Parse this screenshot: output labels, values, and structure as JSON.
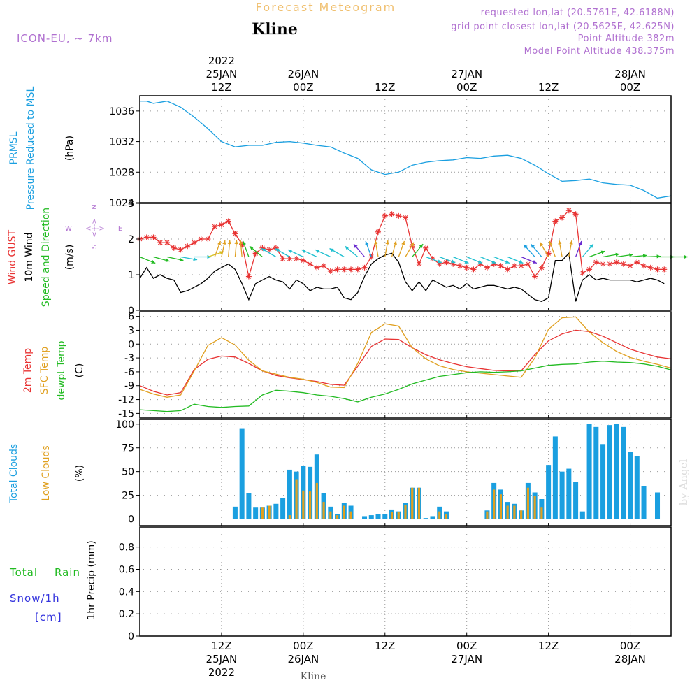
{
  "header": {
    "forecast_label": "Forecast Meteogram",
    "station": "Kline",
    "model": "ICON-EU, ~ 7km",
    "requested": "requested lon,lat (20.5761E, 42.6188N)",
    "gridpoint": "grid point closest lon,lat (20.5625E, 42.625N)",
    "point_alt": "Point Altitude 382m",
    "model_alt": "Model Point Altitude 438.375m"
  },
  "footer": {
    "station": "Kline",
    "watermark": "by Angel"
  },
  "time_axis": {
    "top": [
      {
        "h": 12,
        "lines": [
          "2022",
          "25JAN",
          "12Z"
        ]
      },
      {
        "h": 24,
        "lines": [
          "26JAN",
          "00Z"
        ]
      },
      {
        "h": 36,
        "lines": [
          "12Z"
        ]
      },
      {
        "h": 48,
        "lines": [
          "27JAN",
          "00Z"
        ]
      },
      {
        "h": 60,
        "lines": [
          "12Z"
        ]
      },
      {
        "h": 72,
        "lines": [
          "28JAN",
          "00Z"
        ]
      }
    ],
    "bottom": [
      {
        "h": 12,
        "lines": [
          "12Z",
          "25JAN",
          "2022"
        ]
      },
      {
        "h": 24,
        "lines": [
          "00Z",
          "26JAN"
        ]
      },
      {
        "h": 36,
        "lines": [
          "12Z"
        ]
      },
      {
        "h": 48,
        "lines": [
          "00Z",
          "27JAN"
        ]
      },
      {
        "h": 60,
        "lines": [
          "12Z"
        ]
      },
      {
        "h": 72,
        "lines": [
          "00Z",
          "28JAN"
        ]
      }
    ]
  },
  "legend": {
    "p1": [
      {
        "t": "PRMSL",
        "c": "#1a9fe0"
      },
      {
        "t": "Pressure Reduced to MSL",
        "c": "#1a9fe0"
      },
      {
        "t": "(hPa)",
        "c": "#000000"
      }
    ],
    "p2": [
      {
        "t": "Wind GUST",
        "c": "#e83333"
      },
      {
        "t": "10m Wind",
        "c": "#000000"
      },
      {
        "t": "Speed and Direction",
        "c": "#22bb22"
      },
      {
        "t": "(m/s)",
        "c": "#000000"
      }
    ],
    "compass": {
      "n": "N",
      "s": "S",
      "w": "W",
      "e": "E",
      "ns": "<--->",
      "we": "<--->"
    },
    "p3": [
      {
        "t": "2m Temp",
        "c": "#e83333"
      },
      {
        "t": "SFC Temp",
        "c": "#e0a020"
      },
      {
        "t": "dewpt Temp",
        "c": "#22bb22"
      },
      {
        "t": "(C)",
        "c": "#000000"
      }
    ],
    "p4": [
      {
        "t": "Total Clouds",
        "c": "#1a9fe0"
      },
      {
        "t": "Low Clouds",
        "c": "#e0a020"
      },
      {
        "t": "(%)",
        "c": "#000000"
      }
    ],
    "p5": [
      {
        "t": "Total",
        "c": "#22bb22"
      },
      {
        "t": "Rain",
        "c": "#22bb22"
      },
      {
        "t": "Snow/1h",
        "c": "#3333dd"
      },
      {
        "t": "[cm]",
        "c": "#3333dd"
      },
      {
        "t": "1hr Precip (mm)",
        "c": "#000000"
      }
    ]
  },
  "colors": {
    "pressure": "#1a9fe0",
    "gust": "#e83333",
    "wind": "#000000",
    "t2m": "#e83333",
    "tsfc": "#e0a020",
    "dewpt": "#22bb22",
    "cloud_total": "#1a9fe0",
    "cloud_low": "#e0a020",
    "grid": "#999999"
  },
  "chart_data": [
    {
      "type": "line",
      "id": "pressure",
      "title": "PRMSL Pressure Reduced to MSL",
      "ylabel": "(hPa)",
      "ylim": [
        1024,
        1038
      ],
      "yticks": [
        1024,
        1028,
        1032,
        1036
      ],
      "xlim": [
        0,
        78
      ],
      "grid": true,
      "x": [
        0,
        1,
        2,
        4,
        6,
        8,
        10,
        12,
        14,
        16,
        18,
        20,
        22,
        24,
        26,
        28,
        30,
        32,
        34,
        36,
        38,
        40,
        42,
        44,
        46,
        48,
        50,
        52,
        54,
        56,
        58,
        60,
        62,
        64,
        66,
        68,
        70,
        72,
        74,
        76,
        78
      ],
      "series": [
        {
          "name": "PRMSL",
          "values": [
            1037.3,
            1037.3,
            1037.0,
            1037.3,
            1036.5,
            1035.2,
            1033.7,
            1032.0,
            1031.3,
            1031.5,
            1031.5,
            1031.9,
            1032.0,
            1031.8,
            1031.5,
            1031.3,
            1030.5,
            1029.8,
            1028.3,
            1027.7,
            1028.0,
            1028.9,
            1029.3,
            1029.5,
            1029.6,
            1029.9,
            1029.8,
            1030.1,
            1030.2,
            1029.8,
            1028.9,
            1027.8,
            1026.8,
            1026.9,
            1027.1,
            1026.6,
            1026.4,
            1026.3,
            1025.6,
            1024.6,
            1024.9
          ]
        }
      ]
    },
    {
      "type": "line",
      "id": "wind",
      "title": "Wind GUST / 10m Wind Speed and Direction",
      "ylabel": "(m/s)",
      "ylim": [
        0,
        3
      ],
      "yticks": [
        0,
        1,
        2,
        3
      ],
      "xlim": [
        0,
        78
      ],
      "grid": true,
      "x": [
        0,
        1,
        2,
        3,
        4,
        5,
        6,
        7,
        8,
        9,
        10,
        11,
        12,
        13,
        14,
        15,
        16,
        17,
        18,
        19,
        20,
        21,
        22,
        23,
        24,
        25,
        26,
        27,
        28,
        29,
        30,
        31,
        32,
        33,
        34,
        35,
        36,
        37,
        38,
        39,
        40,
        41,
        42,
        43,
        44,
        45,
        46,
        47,
        48,
        49,
        50,
        51,
        52,
        53,
        54,
        55,
        56,
        57,
        58,
        59,
        60,
        61,
        62,
        63,
        64,
        65,
        66,
        67,
        68,
        69,
        70,
        71,
        72,
        73,
        74,
        75,
        76,
        77
      ],
      "series": [
        {
          "name": "Wind GUST",
          "values": [
            2.0,
            2.05,
            2.05,
            1.9,
            1.9,
            1.75,
            1.7,
            1.8,
            1.9,
            2.0,
            2.0,
            2.35,
            2.4,
            2.5,
            2.15,
            1.85,
            0.95,
            1.6,
            1.75,
            1.7,
            1.75,
            1.45,
            1.45,
            1.45,
            1.4,
            1.3,
            1.2,
            1.25,
            1.1,
            1.15,
            1.15,
            1.15,
            1.15,
            1.2,
            1.5,
            2.2,
            2.65,
            2.7,
            2.65,
            2.6,
            1.8,
            1.3,
            1.75,
            1.45,
            1.3,
            1.35,
            1.3,
            1.25,
            1.2,
            1.15,
            1.3,
            1.2,
            1.3,
            1.25,
            1.15,
            1.25,
            1.25,
            1.3,
            0.95,
            1.2,
            1.6,
            2.5,
            2.6,
            2.8,
            2.7,
            1.05,
            1.15,
            1.35,
            1.3,
            1.3,
            1.35,
            1.3,
            1.25,
            1.35,
            1.25,
            1.2,
            1.15,
            1.15
          ]
        },
        {
          "name": "10m Wind",
          "values": [
            0.9,
            1.2,
            0.9,
            1.0,
            0.9,
            0.85,
            0.5,
            0.55,
            0.65,
            0.75,
            0.9,
            1.1,
            1.2,
            1.3,
            1.15,
            0.75,
            0.3,
            0.75,
            0.85,
            0.95,
            0.85,
            0.8,
            0.6,
            0.85,
            0.75,
            0.55,
            0.65,
            0.6,
            0.6,
            0.65,
            0.35,
            0.3,
            0.5,
            0.95,
            1.3,
            1.45,
            1.55,
            1.6,
            1.35,
            0.8,
            0.55,
            0.8,
            0.55,
            0.85,
            0.75,
            0.65,
            0.7,
            0.6,
            0.75,
            0.6,
            0.65,
            0.7,
            0.7,
            0.65,
            0.6,
            0.65,
            0.6,
            0.45,
            0.3,
            0.25,
            0.35,
            1.4,
            1.4,
            1.6,
            0.25,
            0.85,
            1.0,
            0.85,
            0.9,
            0.85,
            0.85,
            0.85,
            0.85,
            0.8,
            0.85,
            0.9,
            0.85,
            0.75
          ]
        }
      ],
      "direction_arrows": {
        "x": [
          0,
          2,
          4,
          6,
          8,
          10,
          11,
          12,
          13,
          14,
          15,
          16,
          18,
          20,
          22,
          24,
          26,
          28,
          30,
          32,
          33,
          34,
          35,
          36,
          37,
          38,
          39,
          40,
          42,
          44,
          46,
          48,
          50,
          52,
          54,
          56,
          58,
          59,
          60,
          61,
          62,
          63,
          64,
          65,
          66,
          68,
          70,
          72,
          74,
          76,
          78
        ],
        "dir_deg": [
          112,
          105,
          102,
          100,
          90,
          72,
          20,
          12,
          5,
          5,
          355,
          340,
          310,
          300,
          300,
          295,
          295,
          295,
          300,
          310,
          320,
          340,
          350,
          10,
          15,
          20,
          30,
          40,
          110,
          110,
          112,
          112,
          112,
          112,
          112,
          112,
          318,
          320,
          330,
          340,
          350,
          10,
          20,
          40,
          70,
          80,
          82,
          85,
          88,
          90,
          90
        ],
        "color": [
          "#22bb22",
          "#22bb22",
          "#22bb22",
          "#20c0d0",
          "#20c0d0",
          "#d4c020",
          "#e0a020",
          "#e0a020",
          "#e0a020",
          "#e0a020",
          "#e0a020",
          "#22bb22",
          "#22bb22",
          "#20c0d0",
          "#20c0d0",
          "#20c0d0",
          "#20c0d0",
          "#20c0d0",
          "#20c0d0",
          "#20c0d0",
          "#6a2bd0",
          "#1a9fe0",
          "#e0a020",
          "#e0a020",
          "#e0a020",
          "#e0a020",
          "#e0a020",
          "#22bb22",
          "#20c0d0",
          "#20c0d0",
          "#20c0d0",
          "#20c0d0",
          "#20c0d0",
          "#20c0d0",
          "#20c0d0",
          "#6a2bd0",
          "#1a9fe0",
          "#1a9fe0",
          "#e0a020",
          "#e0a020",
          "#e0a020",
          "#e0a020",
          "#6a2bd0",
          "#20c0d0",
          "#22bb22",
          "#22bb22",
          "#22bb22",
          "#22bb22",
          "#22bb22",
          "#22bb22",
          "#22bb22"
        ]
      }
    },
    {
      "type": "line",
      "id": "temperature",
      "title": "2m Temp / SFC Temp / dewpt Temp",
      "ylabel": "(C)",
      "ylim": [
        -16,
        7
      ],
      "yticks": [
        -15,
        -12,
        -9,
        -6,
        -3,
        0,
        3,
        6
      ],
      "xlim": [
        0,
        78
      ],
      "grid": true,
      "x": [
        0,
        2,
        4,
        6,
        8,
        10,
        12,
        14,
        16,
        18,
        20,
        22,
        24,
        26,
        28,
        30,
        32,
        34,
        36,
        38,
        40,
        42,
        44,
        46,
        48,
        50,
        52,
        54,
        56,
        58,
        60,
        62,
        64,
        66,
        68,
        70,
        72,
        74,
        76,
        78
      ],
      "series": [
        {
          "name": "2m Temp",
          "values": [
            -9.0,
            -10.2,
            -11.0,
            -10.5,
            -5.5,
            -3.3,
            -2.6,
            -2.8,
            -4.2,
            -5.8,
            -6.8,
            -7.3,
            -7.7,
            -8.1,
            -8.7,
            -8.9,
            -4.8,
            -0.5,
            1.1,
            1.0,
            -0.8,
            -2.3,
            -3.4,
            -4.2,
            -4.9,
            -5.3,
            -5.7,
            -5.8,
            -5.8,
            -2.3,
            0.7,
            2.2,
            3.0,
            2.7,
            1.7,
            0.3,
            -1.1,
            -2.0,
            -2.8,
            -3.2
          ]
        },
        {
          "name": "SFC Temp",
          "values": [
            -9.8,
            -10.8,
            -11.5,
            -11.0,
            -5.8,
            -0.3,
            1.4,
            -0.2,
            -3.5,
            -5.8,
            -6.5,
            -7.2,
            -7.6,
            -8.3,
            -9.3,
            -9.4,
            -4.2,
            2.5,
            4.4,
            3.9,
            -0.8,
            -3.2,
            -4.7,
            -5.5,
            -6.0,
            -6.3,
            -6.6,
            -6.9,
            -7.2,
            -3.0,
            3.2,
            5.7,
            5.9,
            2.6,
            0.3,
            -1.6,
            -2.9,
            -3.7,
            -4.4,
            -5.2
          ]
        },
        {
          "name": "dewpt Temp",
          "values": [
            -14.2,
            -14.4,
            -14.6,
            -14.4,
            -13.0,
            -13.5,
            -13.7,
            -13.5,
            -13.4,
            -11.0,
            -10.0,
            -10.2,
            -10.5,
            -11.0,
            -11.3,
            -11.8,
            -12.5,
            -11.5,
            -10.8,
            -9.8,
            -8.6,
            -7.8,
            -7.0,
            -6.6,
            -6.2,
            -6.0,
            -6.1,
            -6.0,
            -5.8,
            -5.2,
            -4.6,
            -4.4,
            -4.3,
            -3.9,
            -3.7,
            -3.9,
            -4.0,
            -4.3,
            -4.8,
            -5.6
          ]
        }
      ]
    },
    {
      "type": "bar",
      "id": "clouds",
      "title": "Total Clouds / Low Clouds",
      "ylabel": "(%)",
      "ylim": [
        -7,
        105
      ],
      "yticks": [
        0,
        25,
        50,
        75,
        100
      ],
      "xlim": [
        0,
        78
      ],
      "grid": true,
      "x": [
        14,
        15,
        16,
        17,
        18,
        19,
        20,
        21,
        22,
        23,
        24,
        25,
        26,
        27,
        28,
        29,
        30,
        31,
        32,
        33,
        34,
        35,
        36,
        37,
        38,
        39,
        40,
        41,
        42,
        43,
        44,
        45,
        46,
        47,
        48,
        49,
        50,
        51,
        52,
        53,
        54,
        55,
        56,
        57,
        58,
        59,
        60,
        61,
        62,
        63,
        64,
        65,
        66,
        67,
        68,
        69,
        70,
        71,
        72,
        73,
        74,
        75,
        76,
        77,
        78
      ],
      "series": [
        {
          "name": "Total Clouds",
          "values": [
            13,
            95,
            27,
            12,
            12,
            14,
            16,
            22,
            52,
            50,
            56,
            55,
            68,
            27,
            13,
            5,
            17,
            14,
            0,
            3,
            4,
            5,
            5,
            10,
            8,
            17,
            33,
            33,
            1,
            3,
            13,
            8,
            0,
            0,
            0,
            0,
            0,
            9,
            38,
            31,
            18,
            16,
            9,
            38,
            28,
            21,
            57,
            87,
            50,
            53,
            39,
            8,
            100,
            97,
            79,
            99,
            100,
            97,
            71,
            66,
            35,
            0,
            28,
            0,
            0
          ]
        },
        {
          "name": "Low Clouds",
          "values": [
            0,
            0,
            0,
            0,
            12,
            14,
            0,
            0,
            4,
            42,
            30,
            29,
            38,
            18,
            8,
            4,
            14,
            8,
            0,
            0,
            0,
            0,
            0,
            7,
            7,
            15,
            33,
            33,
            0,
            0,
            8,
            5,
            0,
            0,
            0,
            0,
            0,
            8,
            31,
            26,
            14,
            14,
            9,
            33,
            24,
            12,
            0,
            0,
            0,
            0,
            0,
            0,
            0,
            0,
            0,
            0,
            0,
            0,
            0,
            0,
            0,
            0,
            0,
            0,
            0
          ]
        }
      ]
    },
    {
      "type": "bar",
      "id": "precip",
      "title": "Total Rain Snow/1h",
      "ylabel": "1hr Precip (mm)",
      "ylim": [
        0,
        0.98
      ],
      "yticks": [
        0,
        0.2,
        0.4,
        0.6,
        0.8
      ],
      "xlim": [
        0,
        78
      ],
      "grid": true,
      "x": [],
      "series": [
        {
          "name": "Total",
          "values": []
        },
        {
          "name": "Rain",
          "values": []
        }
      ]
    }
  ]
}
